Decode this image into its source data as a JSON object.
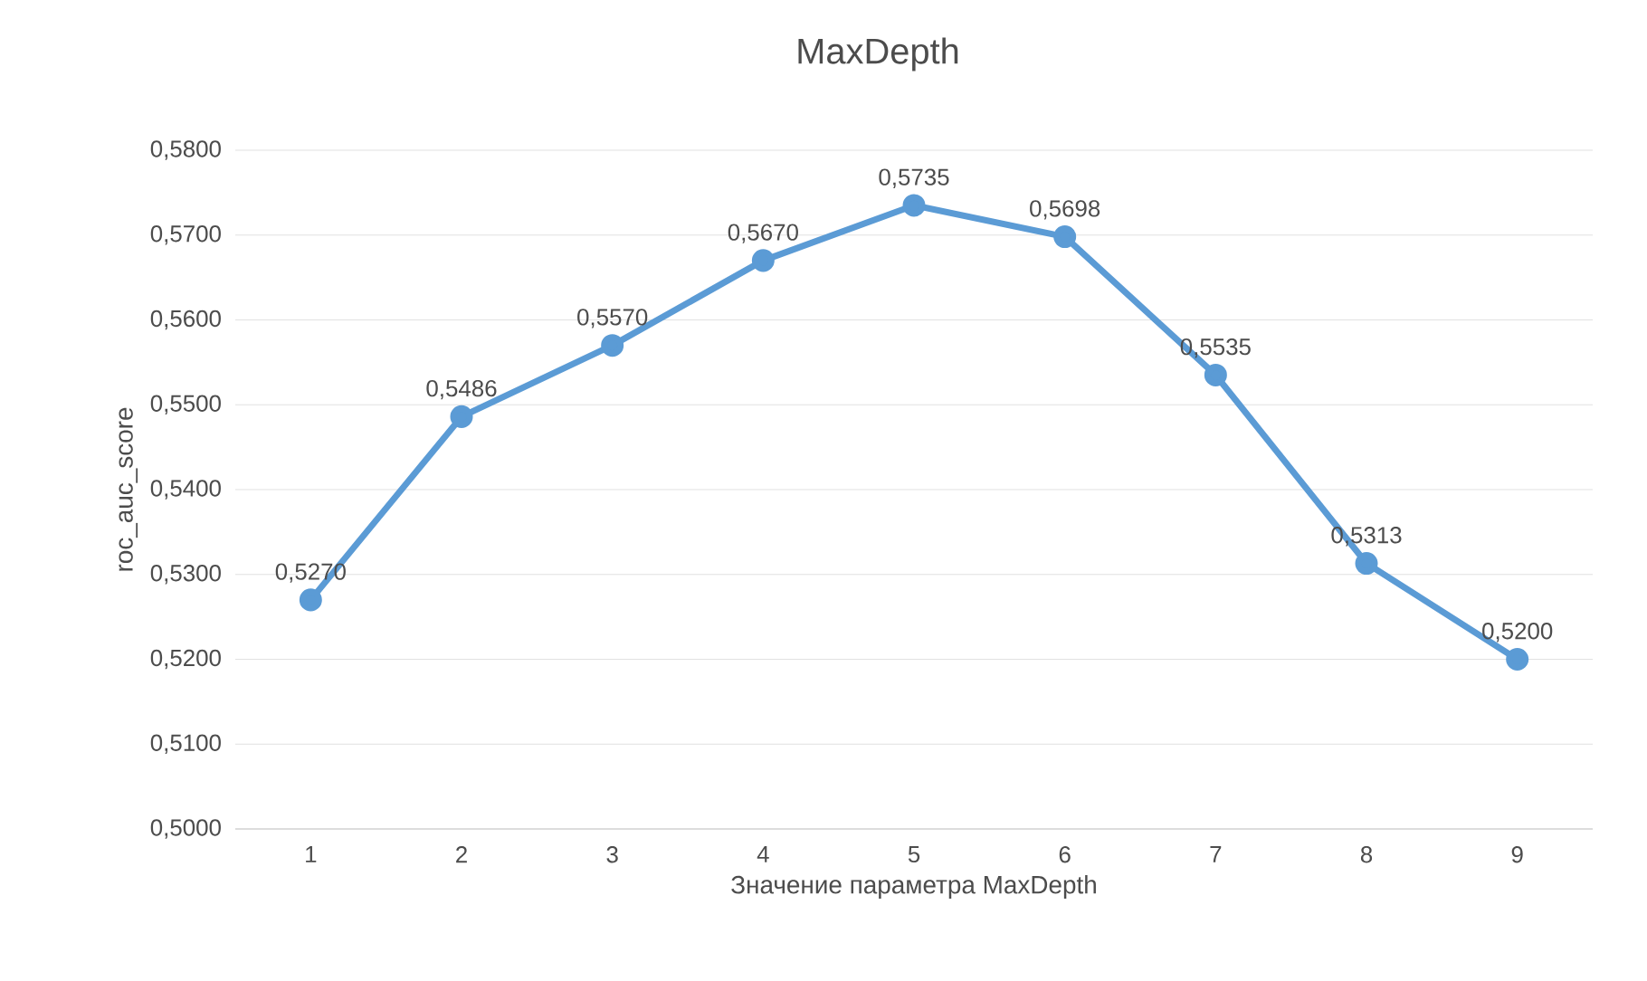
{
  "chart_data": {
    "type": "line",
    "title": "MaxDepth",
    "xlabel": "Значение параметра MaxDepth",
    "ylabel": "roc_auc_score",
    "categories": [
      "1",
      "2",
      "3",
      "4",
      "5",
      "6",
      "7",
      "8",
      "9"
    ],
    "values": [
      0.527,
      0.5486,
      0.557,
      0.567,
      0.5735,
      0.5698,
      0.5535,
      0.5313,
      0.52
    ],
    "value_labels": [
      "0,5270",
      "0,5486",
      "0,5570",
      "0,5670",
      "0,5735",
      "0,5698",
      "0,5535",
      "0,5313",
      "0,5200"
    ],
    "color": "#5b9bd5",
    "marker": "circle",
    "line_style": "solid",
    "grid": "y",
    "ylim": [
      0.5,
      0.58
    ],
    "yticks": [
      {
        "value": 0.5,
        "label": "0,5000"
      },
      {
        "value": 0.51,
        "label": "0,5100"
      },
      {
        "value": 0.52,
        "label": "0,5200"
      },
      {
        "value": 0.53,
        "label": "0,5300"
      },
      {
        "value": 0.54,
        "label": "0,5400"
      },
      {
        "value": 0.55,
        "label": "0,5500"
      },
      {
        "value": 0.56,
        "label": "0,5600"
      },
      {
        "value": 0.57,
        "label": "0,5700"
      },
      {
        "value": 0.58,
        "label": "0,5800"
      }
    ]
  }
}
